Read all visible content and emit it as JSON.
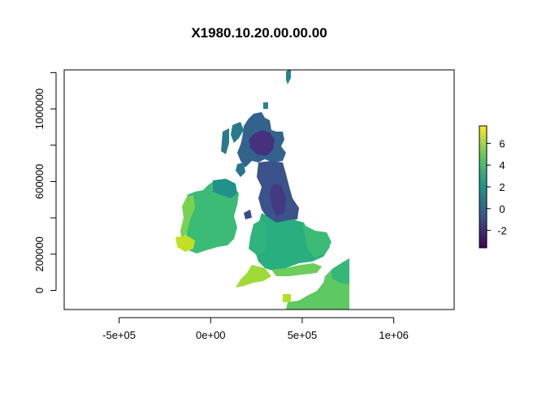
{
  "title": "X1980.10.20.00.00.00",
  "x_axis": {
    "ticks": [
      {
        "value": -500000,
        "label": "-5e+05"
      },
      {
        "value": 0,
        "label": "0e+00"
      },
      {
        "value": 500000,
        "label": "5e+05"
      },
      {
        "value": 1000000,
        "label": "1e+06"
      }
    ],
    "range": [
      -800000,
      1330000
    ]
  },
  "y_axis": {
    "ticks": [
      {
        "value": 0,
        "label": "0"
      },
      {
        "value": 200000,
        "label": "200000"
      },
      {
        "value": 400000,
        "label": ""
      },
      {
        "value": 600000,
        "label": "600000"
      },
      {
        "value": 800000,
        "label": ""
      },
      {
        "value": 1000000,
        "label": "1000000"
      },
      {
        "value": 1200000,
        "label": ""
      }
    ],
    "range": [
      -105000,
      1215000
    ]
  },
  "legend": {
    "colorscale": "viridis",
    "range": [
      -3.6,
      7.6
    ],
    "ticks": [
      {
        "value": -2,
        "label": "-2"
      },
      {
        "value": 0,
        "label": "0"
      },
      {
        "value": 2,
        "label": "2"
      },
      {
        "value": 4,
        "label": "4"
      },
      {
        "value": 6,
        "label": "6"
      }
    ]
  },
  "colors": {
    "viridis_stops": [
      "#440154",
      "#3b528b",
      "#21918c",
      "#5ec962",
      "#fde725"
    ]
  }
}
